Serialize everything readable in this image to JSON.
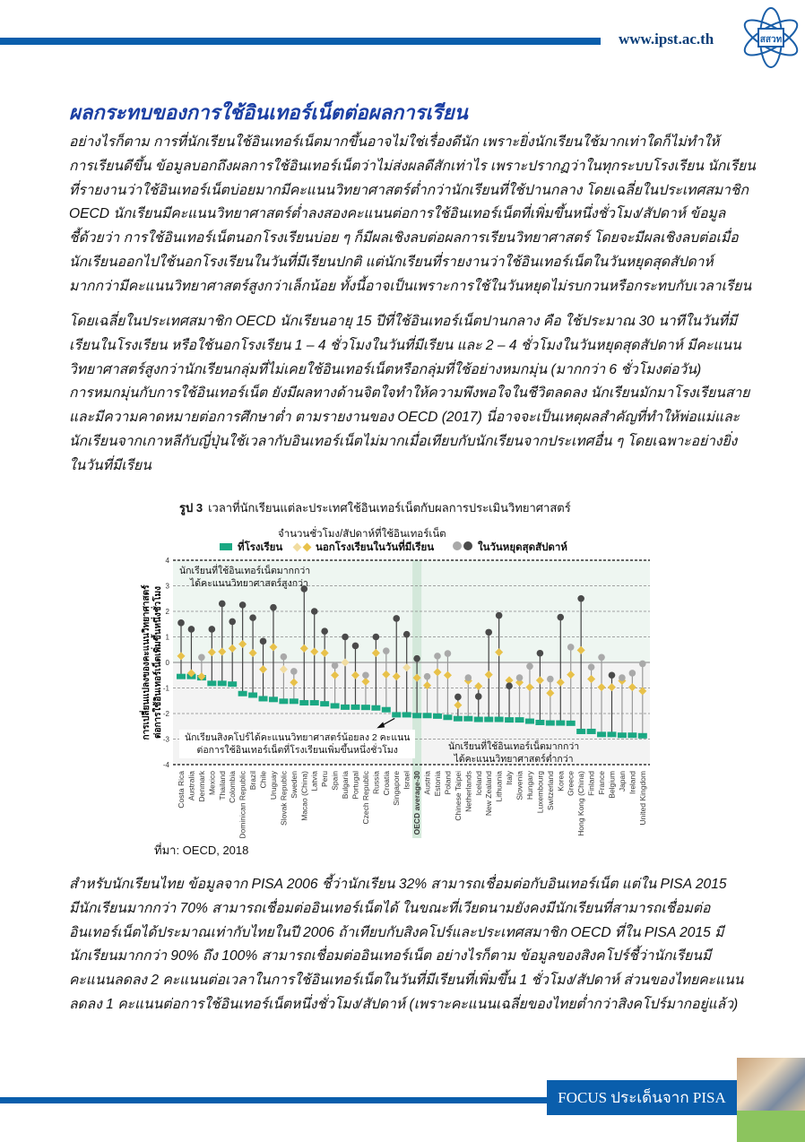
{
  "header": {
    "url": "www.ipst.ac.th",
    "logo_text": "สสวท"
  },
  "title": "ผลกระทบของการใช้อินเทอร์เน็ตต่อผลการเรียน",
  "paragraphs": [
    [
      "อย่างไรก็ตาม การที่นักเรียนใช้อินเทอร์เน็ตมากขึ้นอาจไม่ใช่เรื่องดีนัก เพราะยิ่งนักเรียนใช้มากเท่าใดก็ไม่ทำให้",
      "การเรียนดีขึ้น  ข้อมูลบอกถึงผลการใช้อินเทอร์เน็ตว่าไม่ส่งผลดีสักเท่าไร เพราะปรากฏว่าในทุกระบบโรงเรียน นักเรียน",
      "ที่รายงานว่าใช้อินเทอร์เน็ตบ่อยมากมีคะแนนวิทยาศาสตร์ต่ำกว่านักเรียนที่ใช้ปานกลาง  โดยเฉลี่ยในประเทศสมาชิก",
      "OECD นักเรียนมีคะแนนวิทยาศาสตร์ต่ำลงสองคะแนนต่อการใช้อินเทอร์เน็ตที่เพิ่มขึ้นหนึ่งชั่วโมง/สัปดาห์  ข้อมูล",
      "ชี้ด้วยว่า การใช้อินเทอร์เน็ตนอกโรงเรียนบ่อย ๆ ก็มีผลเชิงลบต่อผลการเรียนวิทยาศาสตร์ โดยจะมีผลเชิงลบต่อเมื่อ",
      "นักเรียนออกไปใช้นอกโรงเรียนในวันที่มีเรียนปกติ  แต่นักเรียนที่รายงานว่าใช้อินเทอร์เน็ตในวันหยุดสุดสัปดาห์",
      "มากกว่ามีคะแนนวิทยาศาสตร์สูงกว่าเล็กน้อย ทั้งนี้อาจเป็นเพราะการใช้ในวันหยุดไม่รบกวนหรือกระทบกับเวลาเรียน"
    ],
    [
      "โดยเฉลี่ยในประเทศสมาชิก OECD นักเรียนอายุ 15 ปีที่ใช้อินเทอร์เน็ตปานกลาง คือ ใช้ประมาณ 30 นาทีในวันที่มี",
      "เรียนในโรงเรียน หรือใช้นอกโรงเรียน 1 – 4 ชั่วโมงในวันที่มีเรียน และ 2 – 4 ชั่วโมงในวันหยุดสุดสัปดาห์ มีคะแนน",
      "วิทยาศาสตร์สูงกว่านักเรียนกลุ่มที่ไม่เคยใช้อินเทอร์เน็ตหรือกลุ่มที่ใช้อย่างหมกมุ่น (มากกว่า 6 ชั่วโมงต่อวัน)",
      "การหมกมุ่นกับการใช้อินเทอร์เน็ต ยังมีผลทางด้านจิตใจทำให้ความพึงพอใจในชีวิตลดลง นักเรียนมักมาโรงเรียนสาย",
      "และมีความคาดหมายต่อการศึกษาต่ำ ตามรายงานของ OECD (2017) นี่อาจจะเป็นเหตุผลสำคัญที่ทำให้พ่อแม่และ",
      "นักเรียนจากเกาหลีกับญี่ปุ่นใช้เวลากับอินเทอร์เน็ตไม่มากเมื่อเทียบกับนักเรียนจากประเทศอื่น ๆ โดยเฉพาะอย่างยิ่ง",
      "ในวันที่มีเรียน"
    ],
    [
      "สำหรับนักเรียนไทย ข้อมูลจาก PISA 2006 ชี้ว่านักเรียน 32% สามารถเชื่อมต่อกับอินเทอร์เน็ต แต่ใน PISA 2015",
      "มีนักเรียนมากกว่า 70% สามารถเชื่อมต่ออินเทอร์เน็ตได้ ในขณะที่เวียดนามยังคงมีนักเรียนที่สามารถเชื่อมต่อ",
      "อินเทอร์เน็ตได้ประมาณเท่ากับไทยในปี 2006  ถ้าเทียบกับสิงคโปร์และประเทศสมาชิก OECD ที่ใน PISA 2015 มี",
      "นักเรียนมากกว่า 90% ถึง 100% สามารถเชื่อมต่ออินเทอร์เน็ต  อย่างไรก็ตาม ข้อมูลของสิงคโปร์ชี้ว่านักเรียนมี",
      "คะแนนลดลง 2 คะแนนต่อเวลาในการใช้อินเทอร์เน็ตในวันที่มีเรียนที่เพิ่มขึ้น 1 ชั่วโมง/สัปดาห์  ส่วนของไทยคะแนน",
      "ลดลง 1 คะแนนต่อการใช้อินเทอร์เน็ตหนึ่งชั่วโมง/สัปดาห์ (เพราะคะแนนเฉลี่ยของไทยต่ำกว่าสิงคโปร์มากอยู่แล้ว)"
    ]
  ],
  "figure": {
    "label": "รูป 3",
    "caption": "เวลาที่นักเรียนแต่ละประเทศใช้อินเทอร์เน็ตกับผลการประเมินวิทยาศาสตร์",
    "source": "ที่มา: OECD, 2018"
  },
  "chart_data": {
    "type": "scatter",
    "title": "จำนวนชั่วโมง/สัปดาห์ที่ใช้อินเทอร์เน็ต",
    "ylabel": [
      "การเปลี่ยนแปลงของคะแนนวิทยาศาสตร์",
      "ต่อการใช้อินเทอร์เน็ตเพิ่มขึ้นหนึ่งชั่วโมง"
    ],
    "ylim": [
      -4,
      4
    ],
    "yticks": [
      "4",
      "3",
      "2",
      "1",
      "0",
      "-1",
      "-2",
      "-3",
      "-4"
    ],
    "legend": {
      "school": "ที่โรงเรียน",
      "weekday": "นอกโรงเรียนในวันที่มีเรียน",
      "weekend": "ในวันหยุดสุดสัปดาห์",
      "placement": "top"
    },
    "annotations": {
      "top": [
        "นักเรียนที่ใช้อินเทอร์เน็ตมากกว่า",
        "ได้คะแนนวิทยาศาสตร์สูงกว่า"
      ],
      "singapore": [
        "นักเรียนสิงคโปร์ได้คะแนนวิทยาศาสตร์น้อยลง 2 คะแนน",
        "ต่อการใช้อินเทอร์เน็ตที่โรงเรียนเพิ่มขึ้นหนึ่งชั่วโมง"
      ],
      "bottom": [
        "นักเรียนที่ใช้อินเทอร์เน็ตมากกว่า",
        "ได้คะแนนวิทยาศาสตร์ต่ำกว่า"
      ]
    },
    "highlight": "OECD average-30",
    "categories": [
      "Costa Rica",
      "Australia",
      "Denmark",
      "Mexico",
      "Thailand",
      "Colombia",
      "Dominican Republic",
      "Brazil",
      "Chile",
      "Uruguay",
      "Slovak Republic",
      "Sweden",
      "Macao (China)",
      "Latvia",
      "Peru",
      "Spain",
      "Bulgaria",
      "Portugal",
      "Czech Republic",
      "Russia",
      "Croatia",
      "Singapore",
      "Israel",
      "OECD average-30",
      "Austria",
      "Estonia",
      "Poland",
      "Chinese Taipei",
      "Netherlands",
      "Iceland",
      "New Zealand",
      "Lithuania",
      "Italy",
      "Slovenia",
      "Hungary",
      "Luxembourg",
      "Switzerland",
      "Korea",
      "Greece",
      "Hong Kong (China)",
      "Finland",
      "France",
      "Belgium",
      "Japan",
      "Ireland",
      "United Kingdom"
    ],
    "series": [
      {
        "name": "ที่โรงเรียน",
        "values": [
          -0.55,
          -0.55,
          -0.6,
          -0.82,
          -0.82,
          -0.85,
          -1.22,
          -1.28,
          -1.42,
          -1.45,
          -1.52,
          -1.52,
          -1.58,
          -1.58,
          -1.62,
          -1.7,
          -1.75,
          -1.75,
          -1.76,
          -1.78,
          -1.85,
          -2.05,
          -2.05,
          -2.08,
          -2.08,
          -2.1,
          -2.15,
          -2.2,
          -2.2,
          -2.23,
          -2.23,
          -2.23,
          -2.25,
          -2.25,
          -2.3,
          -2.35,
          -2.37,
          -2.37,
          -2.38,
          -2.7,
          -2.7,
          -2.82,
          -2.82,
          -2.85,
          -2.85,
          -2.87
        ]
      },
      {
        "name": "นอกโรงเรียนในวันที่มีเรียน",
        "values": [
          0.25,
          -0.42,
          -0.55,
          0.4,
          0.42,
          0.55,
          0.72,
          0.37,
          -0.27,
          0.6,
          -0.27,
          -0.78,
          0.55,
          0.42,
          0.37,
          -0.5,
          0.0,
          -0.5,
          -0.75,
          0.37,
          -0.47,
          -0.55,
          -0.2,
          -0.6,
          -0.9,
          -0.38,
          -0.5,
          -1.67,
          -0.72,
          -0.93,
          -0.48,
          0.4,
          -0.7,
          -0.78,
          -0.97,
          -0.7,
          -1.2,
          -0.78,
          -0.48,
          0.48,
          -0.65,
          -0.97,
          -0.97,
          -0.72,
          -0.97,
          -1.12
        ],
        "significant": [
          1,
          1,
          1,
          1,
          1,
          1,
          1,
          1,
          1,
          1,
          0,
          1,
          1,
          1,
          1,
          1,
          0,
          1,
          1,
          1,
          1,
          1,
          0,
          1,
          1,
          1,
          1,
          1,
          1,
          1,
          1,
          1,
          1,
          1,
          1,
          1,
          1,
          1,
          1,
          1,
          1,
          1,
          1,
          1,
          1,
          1
        ]
      },
      {
        "name": "ในวันหยุดสุดสัปดาห์",
        "values": [
          1.55,
          1.3,
          0.2,
          1.3,
          2.3,
          1.6,
          2.25,
          1.75,
          0.83,
          2.15,
          0.22,
          -0.35,
          2.88,
          2.0,
          1.22,
          -0.12,
          1.0,
          0.65,
          -0.5,
          1.0,
          0.45,
          1.72,
          1.1,
          0.15,
          -0.55,
          0.25,
          0.35,
          -1.35,
          -0.6,
          -1.33,
          1.18,
          1.84,
          -0.92,
          -0.6,
          -0.15,
          0.36,
          -0.65,
          1.77,
          0.6,
          2.5,
          -0.18,
          0.2,
          -0.5,
          -0.6,
          -0.42,
          -0.05
        ],
        "significant": [
          1,
          1,
          0,
          1,
          1,
          1,
          1,
          1,
          1,
          1,
          0,
          0,
          1,
          1,
          1,
          0,
          1,
          1,
          0,
          1,
          0,
          1,
          1,
          1,
          0,
          0,
          0,
          1,
          0,
          1,
          1,
          1,
          1,
          0,
          0,
          1,
          0,
          1,
          0,
          1,
          0,
          0,
          1,
          0,
          0,
          0
        ]
      }
    ],
    "colors": {
      "school": "#1aa883",
      "weekday": "#e8c14a",
      "weekday_ns": "#f1dca0",
      "weekend": "#4a4a4a",
      "weekend_ns": "#a9a9a9",
      "highlight_band": "#d3e8da"
    }
  },
  "footer": {
    "label": "FOCUS ประเด็นจาก PISA"
  }
}
